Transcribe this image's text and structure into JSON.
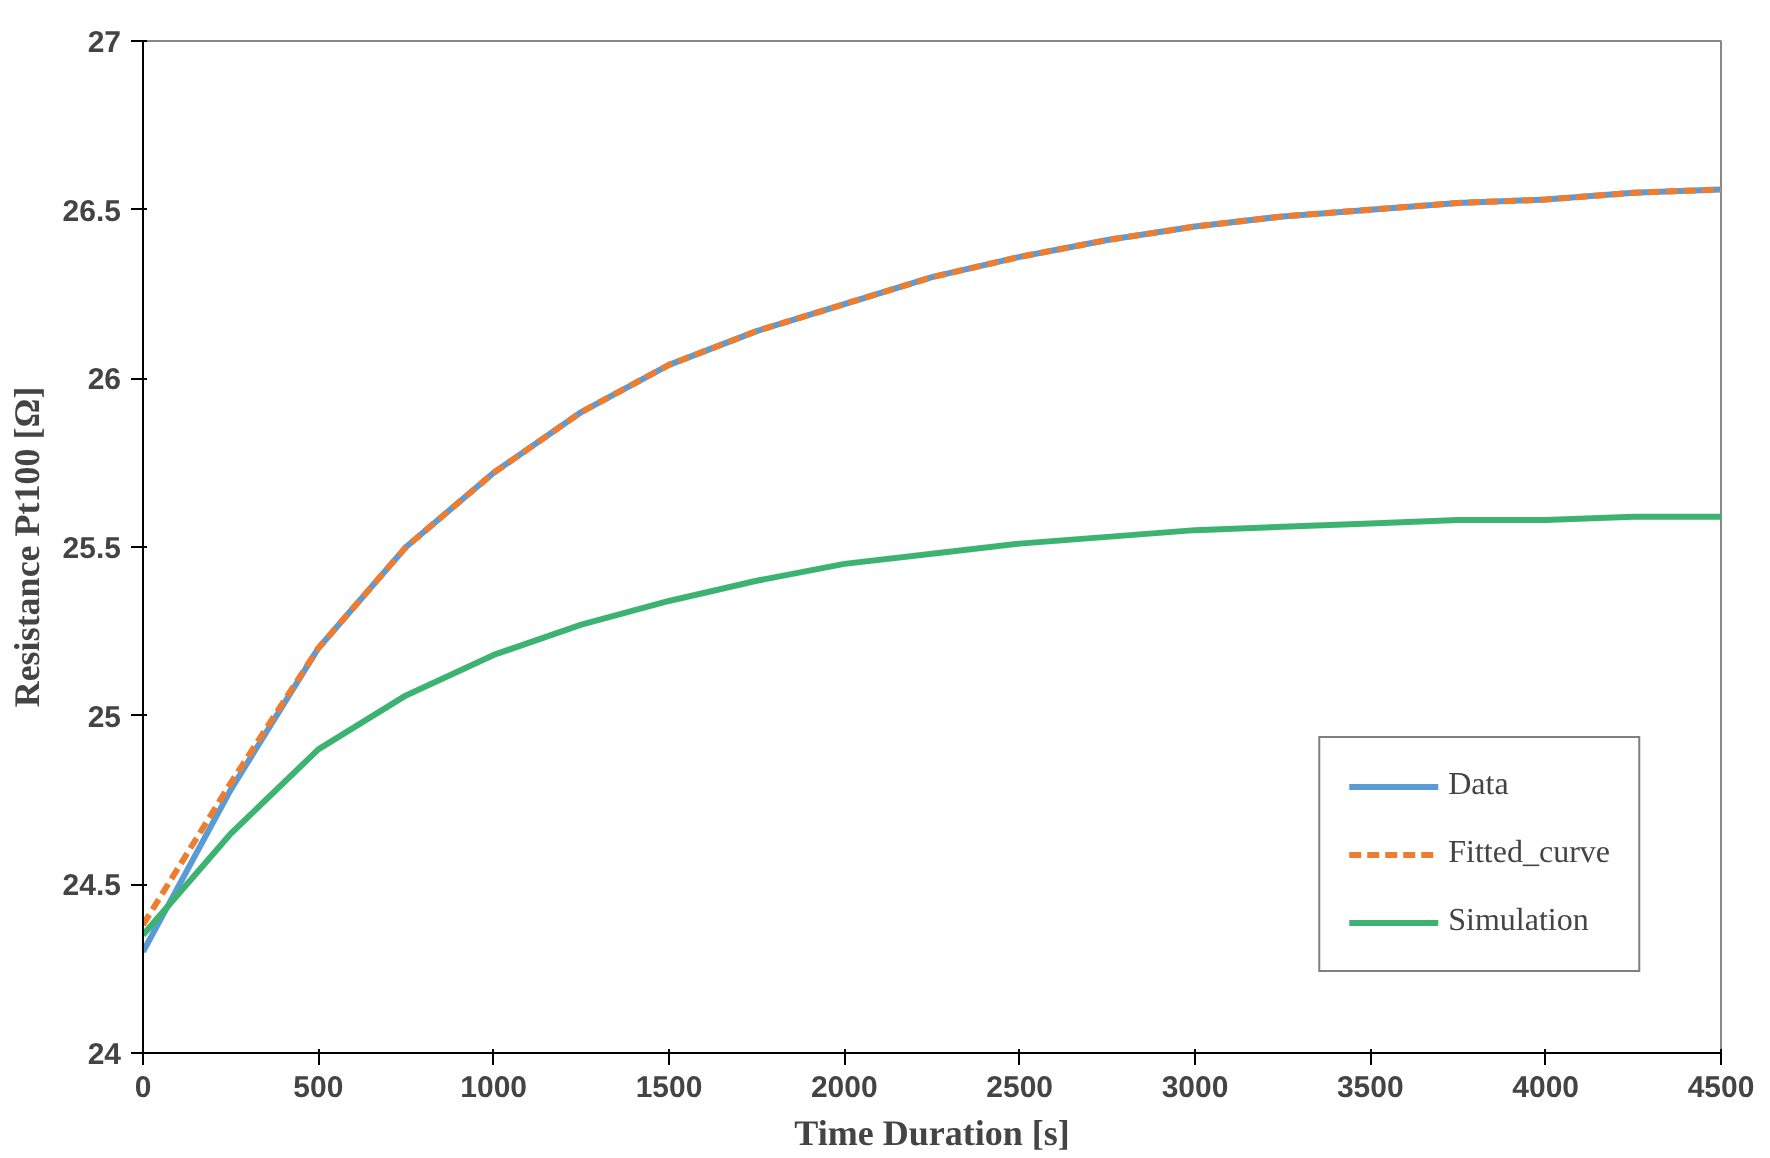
{
  "chart_data": {
    "type": "line",
    "xlabel": "Time Duration [s]",
    "ylabel": "Resistance Pt100 [Ω]",
    "xlim": [
      0,
      4500
    ],
    "xticks": [
      0,
      500,
      1000,
      1500,
      2000,
      2500,
      3000,
      3500,
      4000,
      4500
    ],
    "ylim": [
      24,
      27
    ],
    "yticks": [
      24,
      24.5,
      25,
      25.5,
      26,
      26.5,
      27
    ],
    "x": [
      0,
      250,
      500,
      750,
      1000,
      1250,
      1500,
      1750,
      2000,
      2250,
      2500,
      2750,
      3000,
      3250,
      3500,
      3750,
      4000,
      4250,
      4500
    ],
    "series": [
      {
        "name": "Data",
        "color": "#5b9bd5",
        "line_style": "solid",
        "values": [
          24.3,
          24.78,
          25.2,
          25.5,
          25.72,
          25.9,
          26.04,
          26.14,
          26.22,
          26.3,
          26.36,
          26.41,
          26.45,
          26.48,
          26.5,
          26.52,
          26.53,
          26.55,
          26.56
        ]
      },
      {
        "name": "Fitted_curve",
        "color": "#ed7d31",
        "line_style": "dashed",
        "values": [
          24.38,
          24.8,
          25.2,
          25.5,
          25.72,
          25.9,
          26.04,
          26.14,
          26.22,
          26.3,
          26.36,
          26.41,
          26.45,
          26.48,
          26.5,
          26.52,
          26.53,
          26.55,
          26.56
        ]
      },
      {
        "name": "Simulation",
        "color": "#3cb371",
        "line_style": "solid",
        "values": [
          24.35,
          24.65,
          24.9,
          25.06,
          25.18,
          25.27,
          25.34,
          25.4,
          25.45,
          25.48,
          25.51,
          25.53,
          25.55,
          25.56,
          25.57,
          25.58,
          25.58,
          25.59,
          25.59
        ]
      }
    ],
    "grid": false,
    "legend": "bottom right",
    "marker": "none"
  }
}
